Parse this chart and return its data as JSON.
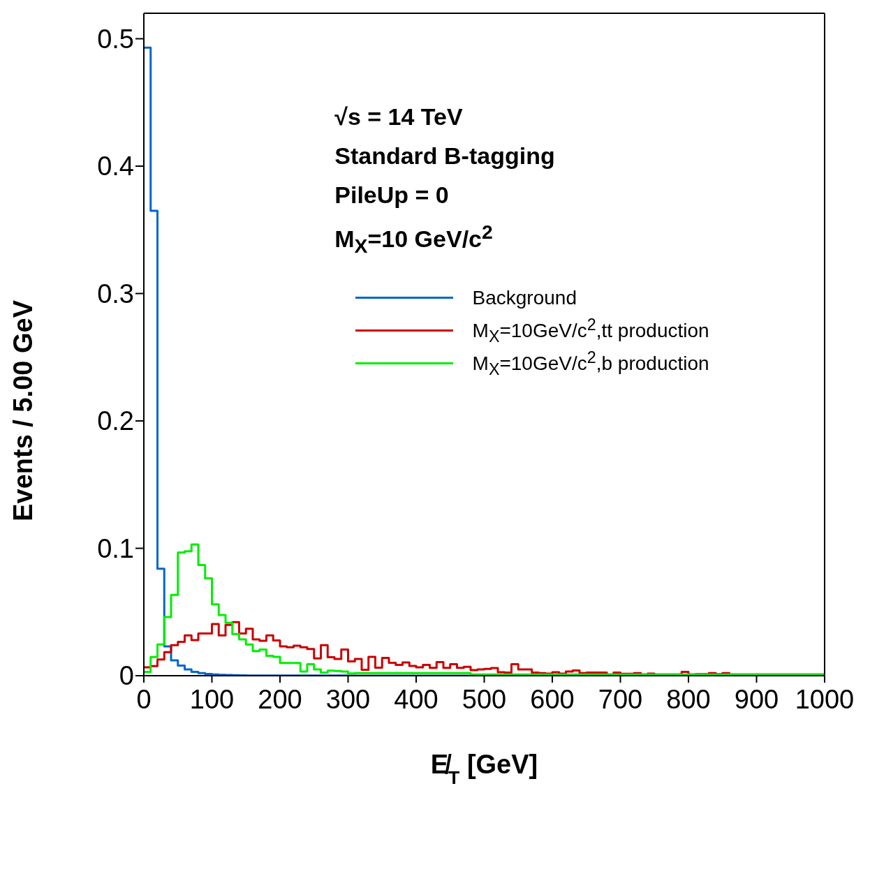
{
  "chart_data": {
    "type": "histogram",
    "xlabel": "E̸$_{T}$  [GeV]",
    "ylabel": "Events / 5.00 GeV",
    "annotations": [
      "√s = 14 TeV",
      "Standard B-tagging",
      "PileUp = 0",
      "M$_{X}$=10 GeV/c$^{2}$"
    ],
    "bins": [
      0,
      10,
      20,
      30,
      40,
      50,
      60,
      70,
      80,
      90,
      100,
      110,
      120,
      130,
      140,
      150,
      160,
      170,
      180,
      190,
      200,
      210,
      220,
      230,
      240,
      250,
      260,
      270,
      280,
      290,
      300,
      310,
      320,
      330,
      340,
      350,
      360,
      370,
      380,
      390,
      400,
      410,
      420,
      430,
      440,
      450,
      460,
      470,
      480,
      490,
      500,
      510,
      520,
      530,
      540,
      550,
      560,
      570,
      580,
      590,
      600,
      610,
      620,
      630,
      640,
      650,
      660,
      670,
      680,
      690,
      700,
      710,
      720,
      730,
      740,
      750,
      760,
      770,
      780,
      790,
      800,
      810,
      820,
      830,
      840,
      850,
      860,
      870,
      880,
      890,
      900,
      910,
      920,
      930,
      940,
      950,
      960,
      970,
      980,
      990,
      1000
    ],
    "series": [
      {
        "name": "Background",
        "color": "#0066cc",
        "values": [
          0.493,
          0.365,
          0.084,
          0.023,
          0.012,
          0.008,
          0.005,
          0.003,
          0.002,
          0.0014,
          0.001,
          0.0007,
          0.0005,
          0.0004,
          0.0003,
          0.0002,
          0.0002,
          0.0002,
          0.0001,
          0.0001,
          0.0001,
          0.0001,
          0.0001,
          0.0001,
          0.0001,
          0.0001,
          0.0001,
          0.0001,
          0.0001,
          0.0001,
          0,
          0,
          0,
          0,
          0,
          0,
          0,
          0,
          0,
          0,
          0,
          0,
          0,
          0,
          0,
          0,
          0,
          0,
          0,
          0,
          0,
          0,
          0,
          0,
          0,
          0,
          0,
          0,
          0,
          0,
          0,
          0,
          0,
          0,
          0,
          0,
          0,
          0,
          0,
          0,
          0,
          0,
          0,
          0,
          0,
          0,
          0,
          0,
          0,
          0,
          0,
          0,
          0,
          0,
          0,
          0,
          0,
          0,
          0,
          0,
          0,
          0,
          0,
          0,
          0,
          0,
          0,
          0,
          0,
          0
        ]
      },
      {
        "name": "M$_{X}$=10GeV/c$^{2}$,tt production",
        "color": "#cc0000",
        "values": [
          0.0066,
          0.0075,
          0.0127,
          0.0185,
          0.024,
          0.0266,
          0.0316,
          0.028,
          0.0332,
          0.0332,
          0.0406,
          0.0316,
          0.0398,
          0.042,
          0.0332,
          0.0368,
          0.0285,
          0.0274,
          0.0316,
          0.0277,
          0.023,
          0.0223,
          0.0235,
          0.0223,
          0.021,
          0.0136,
          0.024,
          0.0145,
          0.0132,
          0.0205,
          0.0113,
          0.0132,
          0.0047,
          0.0148,
          0.0063,
          0.014,
          0.0102,
          0.0085,
          0.0104,
          0.0077,
          0.0066,
          0.0085,
          0.0061,
          0.0107,
          0.0061,
          0.009,
          0.0061,
          0.007,
          0.0044,
          0.0049,
          0.0053,
          0.006,
          0.0028,
          0.0025,
          0.009,
          0.0049,
          0.0049,
          0.0025,
          0.002,
          0.0017,
          0.0028,
          0.0017,
          0.0033,
          0.0041,
          0.002,
          0.0025,
          0.0025,
          0.0025,
          0.001,
          0.0025,
          0.0015,
          0.0015,
          0.002,
          0.001,
          0.0016,
          0.001,
          0.001,
          0.001,
          0.001,
          0.003,
          0.001,
          0.0013,
          0.0013,
          0.002,
          0.0013,
          0.002,
          0.001,
          0.001,
          0.001,
          0.001,
          0.001,
          0.001,
          0.001,
          0.001,
          0.001,
          0.001,
          0.001,
          0.001,
          0.001,
          0.001
        ]
      },
      {
        "name": "M$_{X}$=10GeV/c$^{2}$,b production",
        "color": "#00ee00",
        "values": [
          0.003,
          0.0146,
          0.0245,
          0.046,
          0.0634,
          0.0967,
          0.0977,
          0.103,
          0.0868,
          0.0765,
          0.056,
          0.0477,
          0.0415,
          0.0327,
          0.0285,
          0.0245,
          0.0193,
          0.0205,
          0.0156,
          0.0148,
          0.01,
          0.01,
          0.01,
          0.0033,
          0.009,
          0.005,
          0.0025,
          0.004,
          0.0037,
          0.0033,
          0.0018,
          0.002,
          0.002,
          0.002,
          0.002,
          0.002,
          0.002,
          0.002,
          0.002,
          0.002,
          0.002,
          0.002,
          0.002,
          0.002,
          0.002,
          0.002,
          0.002,
          0.002,
          0.001,
          0.001,
          0.001,
          0.001,
          0.001,
          0.001,
          0.001,
          0.001,
          0.001,
          0.001,
          0.001,
          0.001,
          0.001,
          0.001,
          0.001,
          0.001,
          0.001,
          0.001,
          0.001,
          0.001,
          0.001,
          0.001,
          0.001,
          0.001,
          0.001,
          0.001,
          0.001,
          0.001,
          0.001,
          0.001,
          0.001,
          0.001,
          0.001,
          0.001,
          0.001,
          0.001,
          0.001,
          0.001,
          0.001,
          0.001,
          0.001,
          0.001,
          0.001,
          0.001,
          0.001,
          0.001,
          0.001,
          0.001,
          0.001,
          0.001,
          0.001,
          0.001
        ]
      }
    ],
    "xlim": [
      0,
      1000
    ],
    "xticks": [
      0,
      100,
      200,
      300,
      400,
      500,
      600,
      700,
      800,
      900,
      1000
    ],
    "ylim": [
      0,
      0.52
    ],
    "yticks": [
      0,
      0.1,
      0.2,
      0.3,
      0.4,
      0.5
    ],
    "grid": false,
    "legend": "top right",
    "line_style": "solid",
    "marker": "none"
  }
}
